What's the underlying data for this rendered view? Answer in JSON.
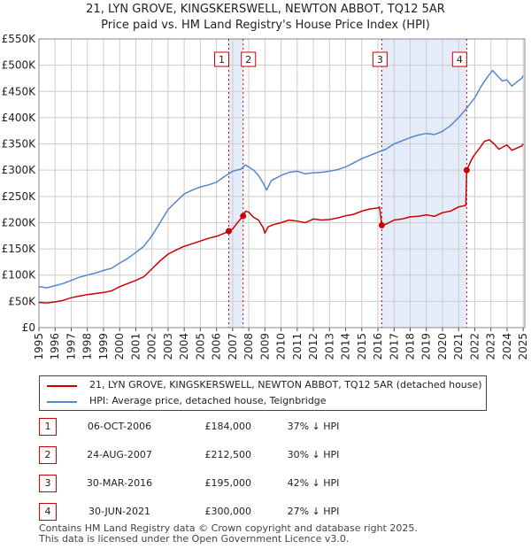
{
  "title_line1": "21, LYN GROVE, KINGSKERSWELL, NEWTON ABBOT, TQ12 5AR",
  "title_line2": "Price paid vs. HM Land Registry's House Price Index (HPI)",
  "colors": {
    "property": "#cc0000",
    "hpi": "#5588cc",
    "shade": "#dde6f7",
    "grid": "#cccccc"
  },
  "legend": {
    "property_label": "21, LYN GROVE, KINGSKERSWELL, NEWTON ABBOT, TQ12 5AR (detached house)",
    "hpi_label": "HPI: Average price, detached house, Teignbridge"
  },
  "chart_data": {
    "type": "line",
    "title": "21, LYN GROVE, KINGSKERSWELL, NEWTON ABBOT, TQ12 5AR",
    "subtitle": "Price paid vs. HM Land Registry's House Price Index (HPI)",
    "xlabel": "",
    "ylabel": "",
    "xlim": [
      1995,
      2025.1
    ],
    "ylim": [
      0,
      550000
    ],
    "x_ticks": [
      "1995",
      "1996",
      "1997",
      "1998",
      "1999",
      "2000",
      "2001",
      "2002",
      "2003",
      "2004",
      "2005",
      "2006",
      "2007",
      "2008",
      "2009",
      "2010",
      "2011",
      "2012",
      "2013",
      "2014",
      "2015",
      "2016",
      "2017",
      "2018",
      "2019",
      "2020",
      "2021",
      "2022",
      "2023",
      "2024",
      "2025"
    ],
    "y_ticks": [
      {
        "value": 0,
        "label": "£0"
      },
      {
        "value": 50000,
        "label": "£50K"
      },
      {
        "value": 100000,
        "label": "£100K"
      },
      {
        "value": 150000,
        "label": "£150K"
      },
      {
        "value": 200000,
        "label": "£200K"
      },
      {
        "value": 250000,
        "label": "£250K"
      },
      {
        "value": 300000,
        "label": "£300K"
      },
      {
        "value": 350000,
        "label": "£350K"
      },
      {
        "value": 400000,
        "label": "£400K"
      },
      {
        "value": 450000,
        "label": "£450K"
      },
      {
        "value": 500000,
        "label": "£500K"
      },
      {
        "value": 550000,
        "label": "£550K"
      }
    ],
    "grid": true,
    "shaded_ranges": [
      [
        2006.76,
        2007.65
      ],
      [
        2016.24,
        2021.5
      ]
    ],
    "series": [
      {
        "name": "21, LYN GROVE, KINGSKERSWELL, NEWTON ABBOT, TQ12 5AR (detached house)",
        "color": "#cc0000",
        "x": [
          1995.0,
          1995.5,
          1996.0,
          1996.5,
          1997.0,
          1997.5,
          1998.0,
          1998.5,
          1999.0,
          1999.5,
          2000.0,
          2000.5,
          2001.0,
          2001.5,
          2002.0,
          2002.5,
          2003.0,
          2003.5,
          2004.0,
          2004.5,
          2005.0,
          2005.5,
          2006.0,
          2006.5,
          2006.76,
          2007.0,
          2007.3,
          2007.65,
          2007.8,
          2008.0,
          2008.3,
          2008.6,
          2008.9,
          2009.0,
          2009.2,
          2009.5,
          2010.0,
          2010.5,
          2011.0,
          2011.5,
          2012.0,
          2012.5,
          2013.0,
          2013.5,
          2014.0,
          2014.5,
          2015.0,
          2015.5,
          2016.0,
          2016.1,
          2016.24,
          2016.5,
          2017.0,
          2017.5,
          2018.0,
          2018.5,
          2019.0,
          2019.5,
          2020.0,
          2020.5,
          2021.0,
          2021.3,
          2021.45,
          2021.5,
          2021.8,
          2022.0,
          2022.3,
          2022.6,
          2022.9,
          2023.2,
          2023.5,
          2023.8,
          2024.0,
          2024.3,
          2024.6,
          2024.9,
          2025.0
        ],
        "y": [
          48000,
          47000,
          49000,
          52000,
          57000,
          60000,
          63000,
          65000,
          67000,
          70000,
          78000,
          84000,
          90000,
          97000,
          112000,
          127000,
          140000,
          148000,
          155000,
          160000,
          165000,
          170000,
          174000,
          180000,
          184000,
          188000,
          200000,
          212500,
          222000,
          220000,
          210000,
          205000,
          190000,
          180000,
          192000,
          196000,
          200000,
          205000,
          203000,
          200000,
          207000,
          205000,
          206000,
          209000,
          213000,
          216000,
          222000,
          226000,
          228000,
          230000,
          195000,
          197000,
          205000,
          207000,
          211000,
          212000,
          215000,
          212000,
          219000,
          222000,
          230000,
          232000,
          233000,
          300000,
          320000,
          330000,
          342000,
          355000,
          358000,
          350000,
          340000,
          345000,
          348000,
          338000,
          342000,
          346000,
          350000
        ]
      },
      {
        "name": "HPI: Average price, detached house, Teignbridge",
        "color": "#5588cc",
        "x": [
          1995.0,
          1995.5,
          1996.0,
          1996.5,
          1997.0,
          1997.5,
          1998.0,
          1998.5,
          1999.0,
          1999.5,
          2000.0,
          2000.5,
          2001.0,
          2001.5,
          2002.0,
          2002.5,
          2003.0,
          2003.5,
          2004.0,
          2004.5,
          2005.0,
          2005.5,
          2006.0,
          2006.5,
          2007.0,
          2007.5,
          2007.8,
          2008.0,
          2008.3,
          2008.6,
          2008.9,
          2009.1,
          2009.4,
          2009.7,
          2010.0,
          2010.5,
          2011.0,
          2011.5,
          2012.0,
          2012.5,
          2013.0,
          2013.5,
          2014.0,
          2014.5,
          2015.0,
          2015.5,
          2016.0,
          2016.5,
          2017.0,
          2017.5,
          2018.0,
          2018.5,
          2019.0,
          2019.5,
          2020.0,
          2020.5,
          2021.0,
          2021.5,
          2022.0,
          2022.4,
          2022.8,
          2023.1,
          2023.4,
          2023.7,
          2024.0,
          2024.3,
          2024.6,
          2024.9,
          2025.0
        ],
        "y": [
          78000,
          76000,
          80000,
          84000,
          90000,
          96000,
          100000,
          104000,
          109000,
          113000,
          123000,
          132000,
          143000,
          155000,
          175000,
          200000,
          225000,
          240000,
          255000,
          262000,
          268000,
          272000,
          277000,
          288000,
          298000,
          302000,
          310000,
          306000,
          300000,
          290000,
          275000,
          262000,
          280000,
          285000,
          290000,
          296000,
          298000,
          293000,
          295000,
          296000,
          298000,
          301000,
          306000,
          314000,
          322000,
          328000,
          334000,
          340000,
          350000,
          356000,
          362000,
          367000,
          370000,
          368000,
          374000,
          385000,
          400000,
          418000,
          438000,
          460000,
          478000,
          490000,
          480000,
          470000,
          472000,
          460000,
          468000,
          475000,
          480000
        ]
      }
    ],
    "markers": [
      {
        "id": "1",
        "x": 2006.76,
        "y": 184000
      },
      {
        "id": "2",
        "x": 2007.65,
        "y": 212500
      },
      {
        "id": "3",
        "x": 2016.24,
        "y": 195000
      },
      {
        "id": "4",
        "x": 2021.5,
        "y": 300000
      }
    ]
  },
  "transactions": [
    {
      "id": "1",
      "date": "06-OCT-2006",
      "price": "£184,000",
      "hpi": "37% ↓ HPI"
    },
    {
      "id": "2",
      "date": "24-AUG-2007",
      "price": "£212,500",
      "hpi": "30% ↓ HPI"
    },
    {
      "id": "3",
      "date": "30-MAR-2016",
      "price": "£195,000",
      "hpi": "42% ↓ HPI"
    },
    {
      "id": "4",
      "date": "30-JUN-2021",
      "price": "£300,000",
      "hpi": "27% ↓ HPI"
    }
  ],
  "footer": {
    "line1": "Contains HM Land Registry data © Crown copyright and database right 2025.",
    "line2": "This data is licensed under the Open Government Licence v3.0."
  }
}
